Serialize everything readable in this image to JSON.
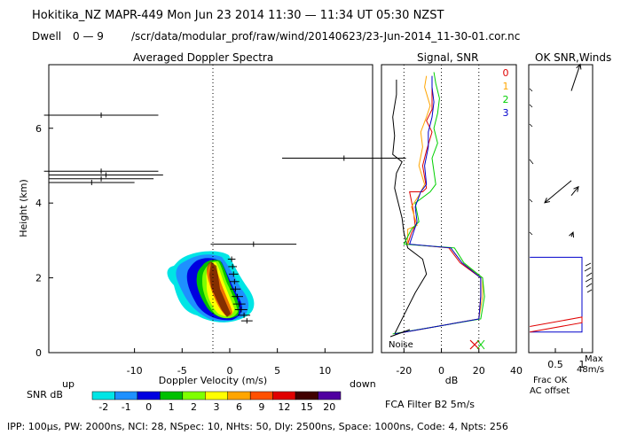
{
  "header": {
    "line1": "Hokitika_NZ   MAPR-449   Mon Jun 23 2014 11:30 — 11:34 UT 05:30 NZST",
    "dwell_label": "Dwell",
    "dwell_range": "0  —  9",
    "file_path": "/scr/data/modular_prof/raw/wind/20140623/23-Jun-2014_11-30-01.cor.nc"
  },
  "footer": {
    "params": "IPP: 100μs,  PW: 2000ns,  NCI:  28,  NSpec: 10, NHts: 50,  Dly: 2500ns,  Space: 1000ns,  Code: 4,  Npts: 256",
    "fca_filter": "FCA Filter B2   5m/s"
  },
  "snr_colorbar": {
    "label": "SNR dB",
    "ticks": [
      "-2",
      "-1",
      "0",
      "1",
      "2",
      "3",
      "6",
      "9",
      "12",
      "15",
      "20"
    ],
    "colors": [
      "#00e5e5",
      "#1e90ff",
      "#0000e0",
      "#00c000",
      "#7fff00",
      "#ffff00",
      "#ffa500",
      "#ff5000",
      "#e00000",
      "#400000",
      "#5000a0"
    ]
  },
  "chart_data": [
    {
      "type": "heatmap",
      "title": "Averaged Doppler Spectra",
      "xlabel": "Doppler Velocity (m/s)",
      "ylabel": "Height (km)",
      "xlim": [
        -19,
        15
      ],
      "ylim": [
        0,
        7.7
      ],
      "xticks": [
        -10,
        -5,
        0,
        5,
        10
      ],
      "yticks": [
        0,
        2,
        4,
        6
      ],
      "x_left_note": "up",
      "x_right_note": "down",
      "spectral_peaks": [
        {
          "height": 0.85,
          "velocity": 1.8,
          "width": 1.2
        },
        {
          "height": 1.0,
          "velocity": 1.5,
          "width": 1.3
        },
        {
          "height": 1.15,
          "velocity": 1.2,
          "width": 1.3
        },
        {
          "height": 1.3,
          "velocity": 1.0,
          "width": 1.3
        },
        {
          "height": 1.5,
          "velocity": 0.8,
          "width": 1.2
        },
        {
          "height": 1.7,
          "velocity": 0.6,
          "width": 1.1
        },
        {
          "height": 1.9,
          "velocity": 0.5,
          "width": 1.0
        },
        {
          "height": 2.1,
          "velocity": 0.4,
          "width": 1.0
        },
        {
          "height": 2.3,
          "velocity": 0.3,
          "width": 0.9
        },
        {
          "height": 2.5,
          "velocity": 0.2,
          "width": 0.8
        },
        {
          "height": 2.9,
          "velocity": 2.5,
          "width": 9.0
        },
        {
          "height": 4.55,
          "velocity": -14.5,
          "width": 9.0
        },
        {
          "height": 4.65,
          "velocity": -13.5,
          "width": 11.0
        },
        {
          "height": 4.75,
          "velocity": -13.0,
          "width": 12.0
        },
        {
          "height": 4.85,
          "velocity": -13.5,
          "width": 12.0
        },
        {
          "height": 5.2,
          "velocity": 12.0,
          "width": 13.0
        },
        {
          "height": 6.35,
          "velocity": -13.5,
          "width": 12.0
        }
      ]
    },
    {
      "type": "line",
      "title": "Signal, SNR",
      "xlabel": "dB",
      "xlim": [
        -32,
        40
      ],
      "ylim": [
        0,
        7.7
      ],
      "xticks": [
        -20,
        0,
        20,
        40
      ],
      "beam_labels": [
        "0",
        "1",
        "2",
        "3"
      ],
      "beam_colors": [
        "#e00000",
        "#ffa500",
        "#00d000",
        "#0000cc"
      ],
      "noise_label": "Noise",
      "series": [
        {
          "name": "Noise",
          "color": "#000000",
          "points": [
            [
              -25,
              0.5
            ],
            [
              -20,
              1.0
            ],
            [
              -14,
              1.6
            ],
            [
              -8,
              2.1
            ],
            [
              -10,
              2.5
            ],
            [
              -18,
              2.8
            ],
            [
              -20,
              3.2
            ],
            [
              -21,
              3.6
            ],
            [
              -23,
              4.0
            ],
            [
              -25,
              4.4
            ],
            [
              -24,
              4.8
            ],
            [
              -21,
              5.1
            ],
            [
              -26,
              5.3
            ],
            [
              -25,
              5.8
            ],
            [
              -26,
              6.3
            ],
            [
              -24,
              6.9
            ],
            [
              -24,
              7.3
            ]
          ]
        },
        {
          "name": "0",
          "color": "#e00000",
          "points": [
            [
              -25,
              0.5
            ],
            [
              20,
              0.9
            ],
            [
              21,
              1.5
            ],
            [
              21,
              2.0
            ],
            [
              10,
              2.4
            ],
            [
              4,
              2.8
            ],
            [
              -18,
              2.9
            ],
            [
              -16,
              3.2
            ],
            [
              -14,
              3.4
            ],
            [
              -15,
              3.8
            ],
            [
              -17,
              4.3
            ],
            [
              -10,
              4.3
            ],
            [
              -8,
              4.4
            ],
            [
              -10,
              5.0
            ],
            [
              -8,
              5.4
            ],
            [
              -5,
              5.9
            ],
            [
              -8,
              6.2
            ],
            [
              -5,
              6.5
            ],
            [
              -5,
              7.0
            ],
            [
              -5,
              7.4
            ]
          ]
        },
        {
          "name": "1",
          "color": "#ffa500",
          "points": [
            [
              -25,
              0.5
            ],
            [
              20,
              0.9
            ],
            [
              22,
              1.5
            ],
            [
              22,
              2.0
            ],
            [
              11,
              2.4
            ],
            [
              5,
              2.8
            ],
            [
              -18,
              2.9
            ],
            [
              -18,
              3.3
            ],
            [
              -13,
              3.4
            ],
            [
              -16,
              3.9
            ],
            [
              -12,
              4.2
            ],
            [
              -9,
              4.5
            ],
            [
              -12,
              5.0
            ],
            [
              -10,
              5.5
            ],
            [
              -11,
              5.9
            ],
            [
              -8,
              6.3
            ],
            [
              -6,
              6.6
            ],
            [
              -9,
              7.1
            ],
            [
              -8,
              7.4
            ]
          ]
        },
        {
          "name": "2",
          "color": "#00d000",
          "points": [
            [
              -26,
              0.5
            ],
            [
              21,
              0.9
            ],
            [
              23,
              1.5
            ],
            [
              22,
              2.0
            ],
            [
              12,
              2.4
            ],
            [
              7,
              2.8
            ],
            [
              -20,
              2.9
            ],
            [
              -16,
              3.3
            ],
            [
              -12,
              3.5
            ],
            [
              -14,
              4.0
            ],
            [
              -6,
              4.3
            ],
            [
              -3,
              4.5
            ],
            [
              -5,
              5.2
            ],
            [
              -2,
              5.6
            ],
            [
              -4,
              6.0
            ],
            [
              -2,
              6.4
            ],
            [
              -1,
              6.8
            ],
            [
              -3,
              7.2
            ],
            [
              -4,
              7.5
            ]
          ]
        },
        {
          "name": "3",
          "color": "#0000cc",
          "points": [
            [
              -25,
              0.5
            ],
            [
              20,
              0.9
            ],
            [
              21,
              1.5
            ],
            [
              21,
              2.0
            ],
            [
              11,
              2.4
            ],
            [
              5,
              2.8
            ],
            [
              -17,
              2.9
            ],
            [
              -15,
              3.2
            ],
            [
              -13,
              3.5
            ],
            [
              -14,
              3.9
            ],
            [
              -11,
              4.3
            ],
            [
              -8,
              4.5
            ],
            [
              -9,
              5.0
            ],
            [
              -7,
              5.5
            ],
            [
              -7,
              5.9
            ],
            [
              -5,
              6.3
            ],
            [
              -4,
              6.7
            ],
            [
              -5,
              7.1
            ],
            [
              -5,
              7.4
            ]
          ]
        }
      ]
    },
    {
      "type": "line",
      "title": "OK SNR,Winds",
      "xlim": [
        0,
        1.2
      ],
      "ylim": [
        0,
        7.7
      ],
      "xticks": [
        0.5,
        1
      ],
      "xlabel_line1": "Frac OK",
      "xlabel_line2": "AC offset",
      "max_label": "Max",
      "max_value": "48m/s",
      "frac_ok": {
        "blue": [
          [
            0.02,
            0.55
          ],
          [
            1.0,
            0.55
          ],
          [
            1.0,
            2.55
          ],
          [
            0.02,
            2.55
          ]
        ],
        "red": [
          [
            0.02,
            0.55
          ],
          [
            1.0,
            0.8
          ],
          [
            1.0,
            0.95
          ],
          [
            0.02,
            0.7
          ]
        ]
      },
      "wind_vectors": [
        {
          "height": 7.0,
          "u": 10,
          "v": 30
        },
        {
          "height": 4.6,
          "u": -30,
          "v": -25
        },
        {
          "height": 4.2,
          "u": 8,
          "v": 10
        },
        {
          "height": 3.1,
          "u": 2,
          "v": 5
        }
      ]
    }
  ]
}
